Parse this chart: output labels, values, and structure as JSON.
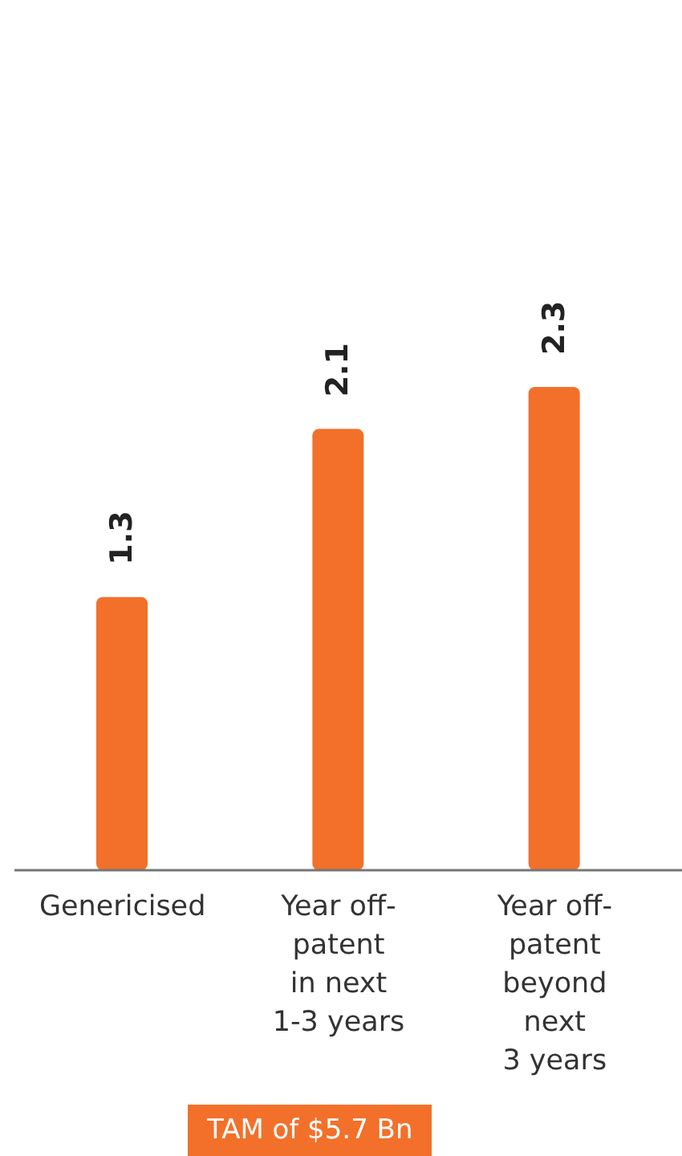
{
  "chart_data": {
    "type": "bar",
    "categories": [
      "Genericised",
      "Year off-\npatent\nin next\n1-3 years",
      "Year off-\npatent\nbeyond\nnext\n3 years"
    ],
    "values": [
      1.3,
      2.1,
      2.3
    ],
    "color": "#f2702a",
    "data_labels": true,
    "tick_labels": "x",
    "annotations": [
      "TAM of $5.7 Bn"
    ]
  }
}
